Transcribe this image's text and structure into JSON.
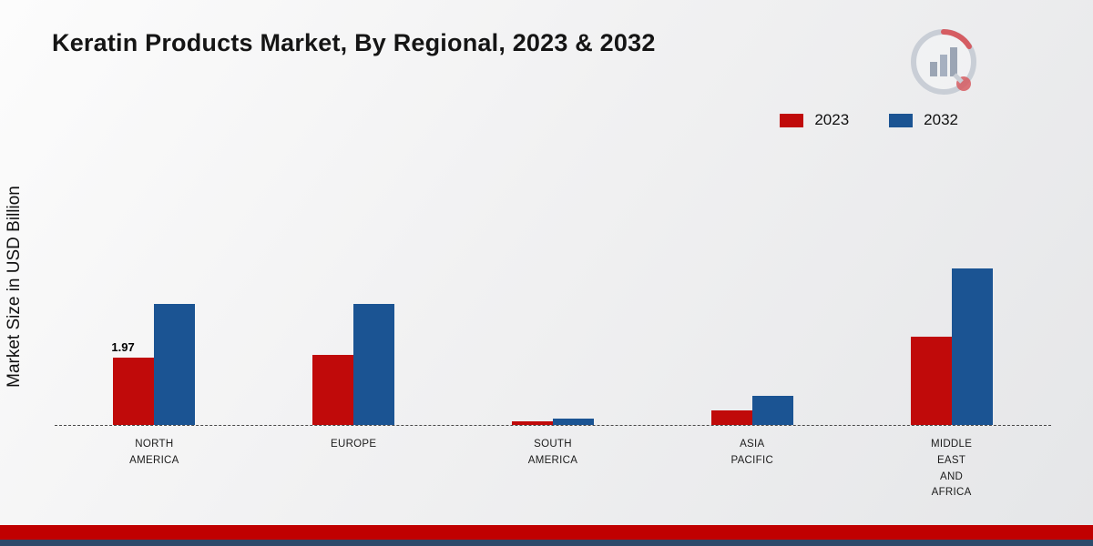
{
  "title": "Keratin Products Market, By Regional, 2023 & 2032",
  "ylabel": "Market Size in USD Billion",
  "legend": [
    {
      "label": "2023",
      "color": "#c00a0a"
    },
    {
      "label": "2032",
      "color": "#1b5493"
    }
  ],
  "colors": {
    "series_2023": "#c00a0a",
    "series_2032": "#1b5493",
    "footer_red_band": "#c00000",
    "footer_blue_band": "#2c4a6b",
    "baseline": "#4a4a4a"
  },
  "chart_data": {
    "type": "bar",
    "categories": [
      "NORTH AMERICA",
      "EUROPE",
      "SOUTH AMERICA",
      "ASIA PACIFIC",
      "MIDDLE EAST AND AFRICA"
    ],
    "series": [
      {
        "name": "2023",
        "color": "#c00a0a",
        "values": [
          1.97,
          2.05,
          0.12,
          0.42,
          2.6
        ]
      },
      {
        "name": "2032",
        "color": "#1b5493",
        "values": [
          3.55,
          3.55,
          0.2,
          0.85,
          4.6
        ]
      }
    ],
    "title": "Keratin Products Market, By Regional, 2023 & 2032",
    "xlabel": "",
    "ylabel": "Market Size in USD Billion",
    "ylim": [
      0,
      5
    ],
    "grid": false,
    "baseline_style": "dashed",
    "legend_position": "top-right",
    "annotations": [
      {
        "series": "2023",
        "category": "NORTH AMERICA",
        "text": "1.97"
      }
    ]
  }
}
